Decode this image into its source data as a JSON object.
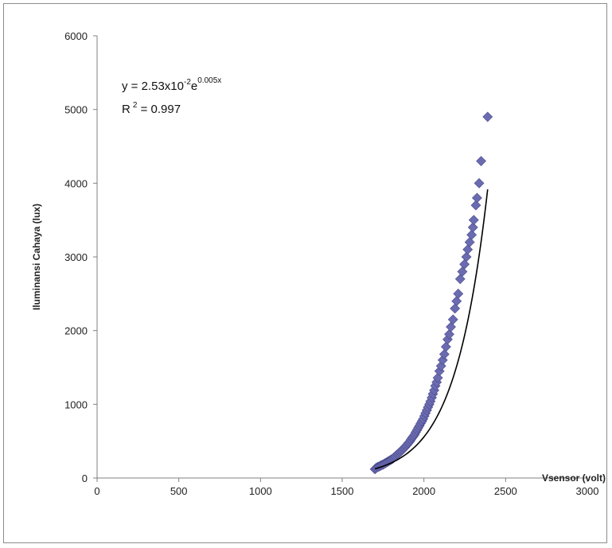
{
  "chart_data": {
    "type": "scatter",
    "title": "",
    "xlabel": "Vsensor (volt)",
    "ylabel": "Iluminansi Cahaya (lux)",
    "xlim": [
      0,
      3000
    ],
    "ylim": [
      0,
      6000
    ],
    "x_ticks": [
      "0",
      "500",
      "1000",
      "1500",
      "2000",
      "2500",
      "3000"
    ],
    "y_ticks": [
      "0",
      "1000",
      "2000",
      "3000",
      "4000",
      "5000",
      "6000"
    ],
    "grid": false,
    "legend": "none",
    "marker_color": "#6b6bb0",
    "trendline_color": "#000000",
    "annotation": {
      "eq_prefix": "y = 2.53x10",
      "eq_exp1": "-2",
      "eq_mid": "e",
      "eq_exp2": "0.005x",
      "r2_prefix": "R",
      "r2_exp": "2",
      "r2_value": " = 0.997"
    },
    "trendline": {
      "type": "exponential",
      "a": 0.0253,
      "b": 0.005,
      "x_range": [
        1700,
        2390
      ]
    },
    "series": [
      {
        "x": [
          1700,
          1705,
          1710,
          1718,
          1725,
          1733,
          1740,
          1748,
          1755,
          1763,
          1770,
          1778,
          1785,
          1793,
          1800,
          1808,
          1815,
          1823,
          1830,
          1838,
          1845,
          1853,
          1860,
          1868,
          1875,
          1883,
          1890,
          1898,
          1905,
          1913,
          1920,
          1928,
          1935,
          1943,
          1950,
          1958,
          1965,
          1973,
          1980,
          1988,
          1995,
          2003,
          2010,
          2018,
          2025,
          2033,
          2040,
          2048,
          2055,
          2063,
          2070,
          2078,
          2085,
          2095,
          2105,
          2115,
          2125,
          2135,
          2145,
          2155,
          2165,
          2178,
          2190,
          2200,
          2210,
          2222,
          2235,
          2248,
          2260,
          2268,
          2280,
          2292,
          2300,
          2305,
          2318,
          2325,
          2338,
          2350,
          2390
        ],
        "y": [
          120,
          130,
          140,
          150,
          155,
          165,
          175,
          180,
          190,
          200,
          210,
          220,
          230,
          240,
          250,
          260,
          275,
          290,
          305,
          320,
          335,
          350,
          365,
          380,
          400,
          415,
          435,
          455,
          475,
          495,
          520,
          545,
          565,
          590,
          620,
          650,
          680,
          710,
          740,
          770,
          800,
          840,
          880,
          920,
          960,
          1000,
          1040,
          1090,
          1140,
          1190,
          1250,
          1300,
          1360,
          1450,
          1520,
          1600,
          1680,
          1780,
          1880,
          1950,
          2050,
          2150,
          2300,
          2400,
          2500,
          2700,
          2800,
          2900,
          3000,
          3100,
          3200,
          3300,
          3400,
          3500,
          3700,
          3800,
          4000,
          4300,
          4900
        ]
      }
    ]
  }
}
